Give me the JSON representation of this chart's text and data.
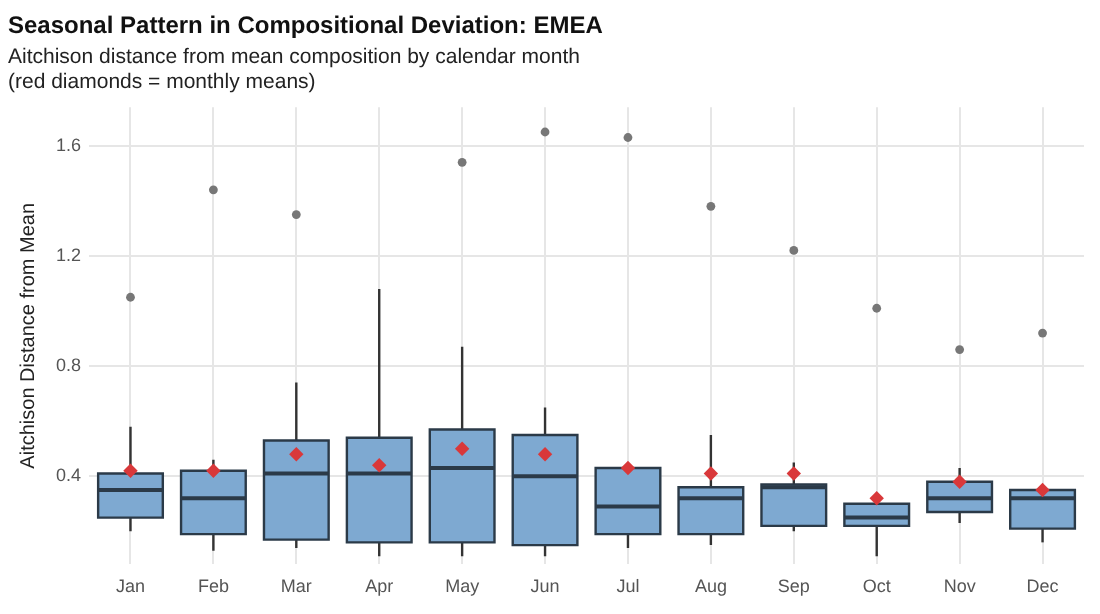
{
  "chart_data": {
    "type": "box",
    "title": "Seasonal Pattern in Compositional Deviation: EMEA",
    "subtitle": "Aitchison distance from mean composition by calendar month\n(red diamonds = monthly means)",
    "ylabel": "Aitchison Distance from Mean",
    "categories": [
      "Jan",
      "Feb",
      "Mar",
      "Apr",
      "May",
      "Jun",
      "Jul",
      "Aug",
      "Sep",
      "Oct",
      "Nov",
      "Dec"
    ],
    "series": [
      {
        "color": "#7ea9d1",
        "boxes": [
          {
            "low": 0.2,
            "q1": 0.25,
            "median": 0.35,
            "q3": 0.41,
            "high": 0.58,
            "mean": 0.42,
            "outliers": [
              1.05
            ]
          },
          {
            "low": 0.13,
            "q1": 0.19,
            "median": 0.32,
            "q3": 0.42,
            "high": 0.46,
            "mean": 0.42,
            "outliers": [
              1.44
            ]
          },
          {
            "low": 0.14,
            "q1": 0.17,
            "median": 0.41,
            "q3": 0.53,
            "high": 0.74,
            "mean": 0.48,
            "outliers": [
              1.35
            ]
          },
          {
            "low": 0.11,
            "q1": 0.16,
            "median": 0.41,
            "q3": 0.54,
            "high": 1.08,
            "mean": 0.44
          },
          {
            "low": 0.11,
            "q1": 0.16,
            "median": 0.43,
            "q3": 0.57,
            "high": 0.87,
            "mean": 0.5,
            "outliers": [
              1.54
            ]
          },
          {
            "low": 0.11,
            "q1": 0.15,
            "median": 0.4,
            "q3": 0.55,
            "high": 0.65,
            "mean": 0.48,
            "outliers": [
              1.65
            ]
          },
          {
            "low": 0.14,
            "q1": 0.19,
            "median": 0.29,
            "q3": 0.43,
            "high": 0.44,
            "mean": 0.43,
            "outliers": [
              1.63
            ]
          },
          {
            "low": 0.15,
            "q1": 0.19,
            "median": 0.32,
            "q3": 0.36,
            "high": 0.55,
            "mean": 0.41,
            "outliers": [
              1.38
            ]
          },
          {
            "low": 0.2,
            "q1": 0.22,
            "median": 0.36,
            "q3": 0.37,
            "high": 0.45,
            "mean": 0.41,
            "outliers": [
              1.22
            ]
          },
          {
            "low": 0.11,
            "q1": 0.22,
            "median": 0.25,
            "q3": 0.3,
            "high": 0.31,
            "mean": 0.32,
            "outliers": [
              1.01
            ]
          },
          {
            "low": 0.23,
            "q1": 0.27,
            "median": 0.32,
            "q3": 0.38,
            "high": 0.43,
            "mean": 0.38,
            "outliers": [
              0.86
            ]
          },
          {
            "low": 0.16,
            "q1": 0.21,
            "median": 0.32,
            "q3": 0.35,
            "high": 0.35,
            "mean": 0.35,
            "outliers": [
              0.92
            ]
          }
        ]
      }
    ],
    "ylim": [
      0.08,
      1.74
    ],
    "yticks": [
      0.4,
      0.8,
      1.2,
      1.6
    ],
    "grid": true
  }
}
